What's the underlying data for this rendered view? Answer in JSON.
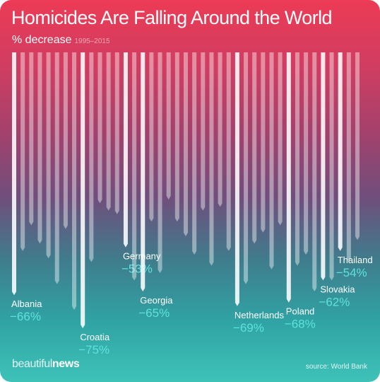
{
  "header": {
    "title": "Homicides Are Falling Around the World",
    "subtitle": "% decrease",
    "subtitle_range": "1995–2015"
  },
  "footer": {
    "logo_thin": "beautiful",
    "logo_bold": "news",
    "source": "source: World Bank"
  },
  "colors": {
    "label": "#ffffff",
    "value": "#5ee3db",
    "bar_plain": "rgba(255,255,255,0.42)",
    "bar_highlight": "rgba(255,255,255,0.88)"
  },
  "chart_data": {
    "type": "bar",
    "orientation": "down",
    "ylim": [
      0,
      100
    ],
    "values": [
      66,
      54,
      47,
      52,
      56,
      63,
      48,
      70,
      75,
      57,
      41,
      43,
      44,
      53,
      62,
      65,
      46,
      60,
      40,
      46,
      50,
      55,
      43,
      58,
      42,
      54,
      69,
      63,
      52,
      49,
      59,
      47,
      68,
      58,
      55,
      65,
      62,
      62,
      54,
      57,
      51
    ],
    "labeled": [
      {
        "index": 0,
        "country": "Albania",
        "value_text": "−66%"
      },
      {
        "index": 8,
        "country": "Croatia",
        "value_text": "−75%"
      },
      {
        "index": 13,
        "country": "Germany",
        "value_text": "−53%"
      },
      {
        "index": 15,
        "country": "Georgia",
        "value_text": "−65%"
      },
      {
        "index": 26,
        "country": "Netherlands",
        "value_text": "−69%"
      },
      {
        "index": 32,
        "country": "Poland",
        "value_text": "−68%"
      },
      {
        "index": 36,
        "country": "Slovakia",
        "value_text": "−62%"
      },
      {
        "index": 38,
        "country": "Thailand",
        "value_text": "−54%"
      }
    ]
  }
}
